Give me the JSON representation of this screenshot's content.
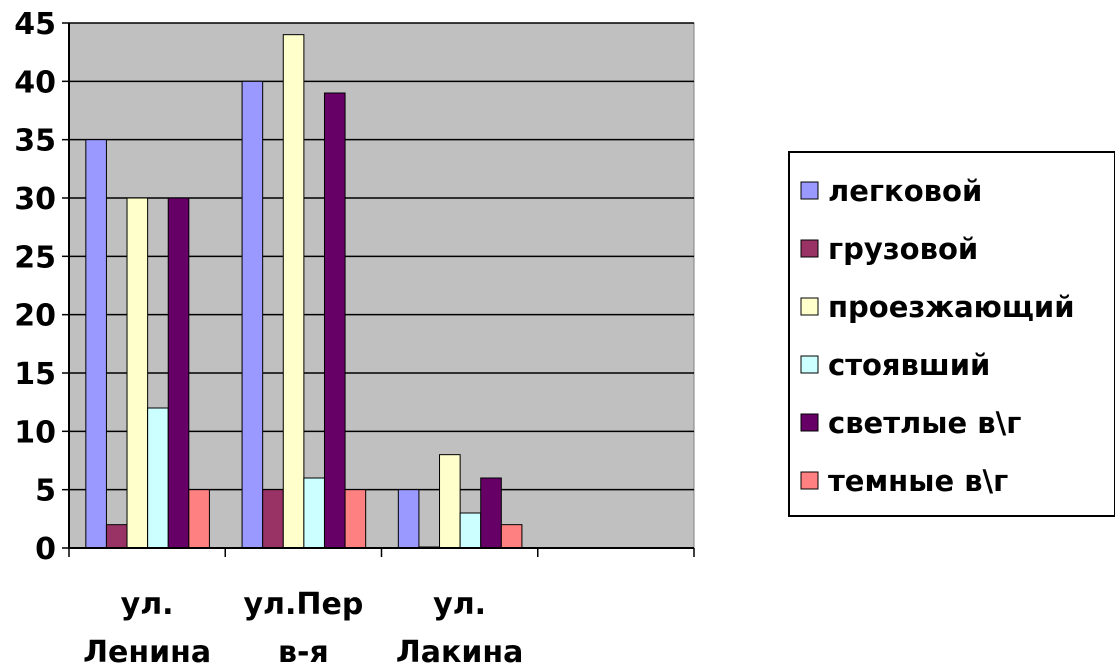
{
  "chart_data": {
    "type": "bar",
    "categories": [
      [
        "ул.",
        "Ленина"
      ],
      [
        "ул.Пер",
        "в-я"
      ],
      [
        "ул.",
        "Лакина"
      ],
      [
        "",
        ""
      ]
    ],
    "series": [
      {
        "name": "легковой",
        "color": "#9999FF",
        "values": [
          35,
          40,
          5,
          null
        ]
      },
      {
        "name": "грузовой",
        "color": "#993366",
        "values": [
          2,
          5,
          0,
          null
        ]
      },
      {
        "name": "проезжающий",
        "color": "#FFFFCC",
        "values": [
          30,
          44,
          8,
          null
        ]
      },
      {
        "name": "стоявший",
        "color": "#CCFFFF",
        "values": [
          12,
          6,
          3,
          null
        ]
      },
      {
        "name": "светлые в\\г",
        "color": "#660066",
        "values": [
          30,
          39,
          6,
          null
        ]
      },
      {
        "name": "темные в\\г",
        "color": "#FF8080",
        "values": [
          5,
          5,
          2,
          null
        ]
      }
    ],
    "y_ticks": [
      "0",
      "5",
      "10",
      "15",
      "20",
      "25",
      "30",
      "35",
      "40",
      "45"
    ],
    "ylim": [
      0,
      45
    ],
    "grid": true,
    "plot_background": "#C0C0C0",
    "legend_position": "right"
  }
}
